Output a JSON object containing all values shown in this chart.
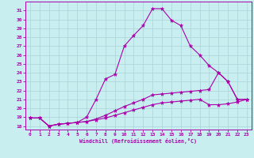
{
  "xlabel": "Windchill (Refroidissement éolien,°C)",
  "bg_color": "#c8eef0",
  "grid_color": "#aad4d8",
  "line_color": "#aa00aa",
  "x_ticks": [
    0,
    1,
    2,
    3,
    4,
    5,
    6,
    7,
    8,
    9,
    10,
    11,
    12,
    13,
    14,
    15,
    16,
    17,
    18,
    19,
    20,
    21,
    22,
    23
  ],
  "y_ticks": [
    18,
    19,
    20,
    21,
    22,
    23,
    24,
    25,
    26,
    27,
    28,
    29,
    30,
    31
  ],
  "ylim": [
    17.6,
    32.0
  ],
  "xlim": [
    -0.5,
    23.5
  ],
  "line1_x": [
    0,
    1,
    2,
    3,
    4,
    5,
    6,
    7,
    8,
    9,
    10,
    11,
    12,
    13,
    14,
    15,
    16,
    17,
    18,
    19,
    20,
    21,
    22,
    23
  ],
  "line1_y": [
    18.9,
    18.9,
    18.0,
    18.2,
    18.3,
    18.4,
    19.0,
    21.0,
    23.3,
    23.8,
    27.0,
    28.2,
    29.3,
    31.2,
    31.2,
    29.9,
    29.3,
    27.0,
    26.0,
    24.8,
    24.0,
    23.0,
    21.0,
    21.0
  ],
  "line2_x": [
    0,
    1,
    2,
    3,
    4,
    5,
    6,
    7,
    8,
    9,
    10,
    11,
    12,
    13,
    14,
    15,
    16,
    17,
    18,
    19,
    20,
    21,
    22,
    23
  ],
  "line2_y": [
    18.9,
    18.9,
    18.0,
    18.2,
    18.3,
    18.4,
    18.5,
    18.8,
    19.2,
    19.7,
    20.2,
    20.6,
    21.0,
    21.5,
    21.6,
    21.7,
    21.8,
    21.9,
    22.0,
    22.1,
    24.0,
    23.0,
    21.0,
    21.0
  ],
  "line3_x": [
    0,
    1,
    2,
    3,
    4,
    5,
    6,
    7,
    8,
    9,
    10,
    11,
    12,
    13,
    14,
    15,
    16,
    17,
    18,
    19,
    20,
    21,
    22,
    23
  ],
  "line3_y": [
    18.9,
    18.9,
    18.0,
    18.2,
    18.3,
    18.4,
    18.5,
    18.7,
    18.9,
    19.2,
    19.5,
    19.8,
    20.1,
    20.4,
    20.6,
    20.7,
    20.8,
    20.9,
    21.0,
    20.4,
    20.4,
    20.5,
    20.7,
    21.0
  ]
}
